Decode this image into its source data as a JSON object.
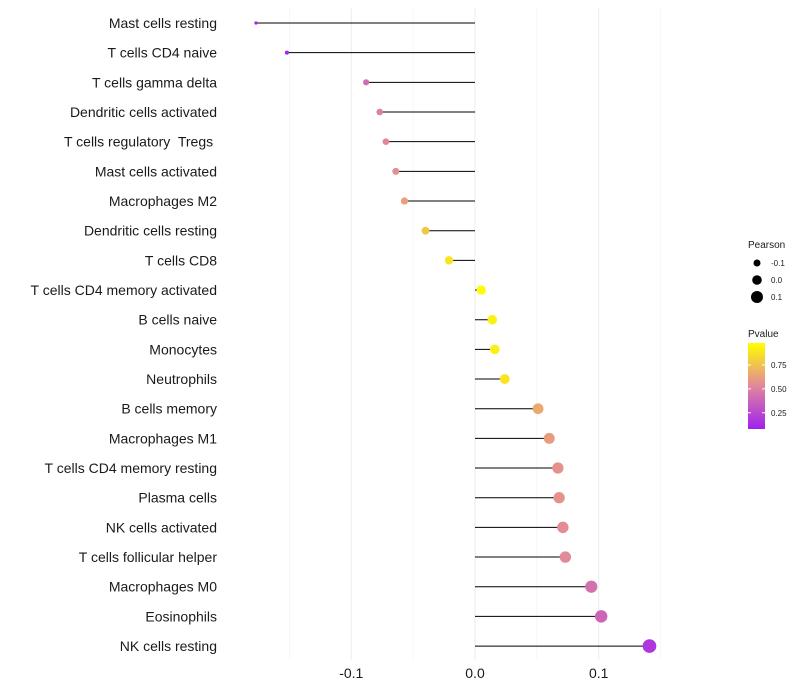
{
  "chart_data": {
    "type": "lollipop",
    "title": "",
    "xlabel": "",
    "ylabel": "",
    "xlim": [
      -0.198,
      0.198
    ],
    "x_ticks": [
      -0.1,
      0.0,
      0.1
    ],
    "x_tick_labels": [
      "-0.1",
      "0.0",
      "0.1"
    ],
    "grid": true,
    "categories": [
      "Mast cells resting",
      "T cells CD4 naive",
      "T cells gamma delta",
      "Dendritic cells activated",
      "T cells regulatory  Tregs ",
      "Mast cells activated",
      "Macrophages M2",
      "Dendritic cells resting",
      "T cells CD8",
      "T cells CD4 memory activated",
      "B cells naive",
      "Monocytes",
      "Neutrophils",
      "B cells memory",
      "Macrophages M1",
      "T cells CD4 memory resting",
      "Plasma cells",
      "NK cells activated",
      "T cells follicular helper",
      "Macrophages M0",
      "Eosinophils",
      "NK cells resting"
    ],
    "pearson": [
      -0.177,
      -0.152,
      -0.088,
      -0.077,
      -0.072,
      -0.064,
      -0.057,
      -0.04,
      -0.021,
      0.005,
      0.014,
      0.016,
      0.024,
      0.051,
      0.06,
      0.067,
      0.068,
      0.071,
      0.073,
      0.094,
      0.102,
      0.141
    ],
    "pvalue": [
      0.09,
      0.11,
      0.42,
      0.5,
      0.53,
      0.56,
      0.62,
      0.77,
      0.88,
      0.97,
      0.93,
      0.92,
      0.88,
      0.66,
      0.61,
      0.57,
      0.57,
      0.55,
      0.54,
      0.43,
      0.38,
      0.18
    ],
    "legend": {
      "position": "right",
      "size_title": "Pearson",
      "size_breaks": [
        -0.1,
        0.0,
        0.1
      ],
      "size_labels": [
        "-0.1",
        "0.0",
        "0.1"
      ],
      "color_title": "Pvalue",
      "color_breaks": [
        0.25,
        0.5,
        0.75
      ],
      "color_labels": [
        "0.25",
        "0.50",
        "0.75"
      ],
      "color_low": "#A020F0",
      "color_mid": "#E2879B",
      "color_high": "#FFFF00"
    }
  }
}
